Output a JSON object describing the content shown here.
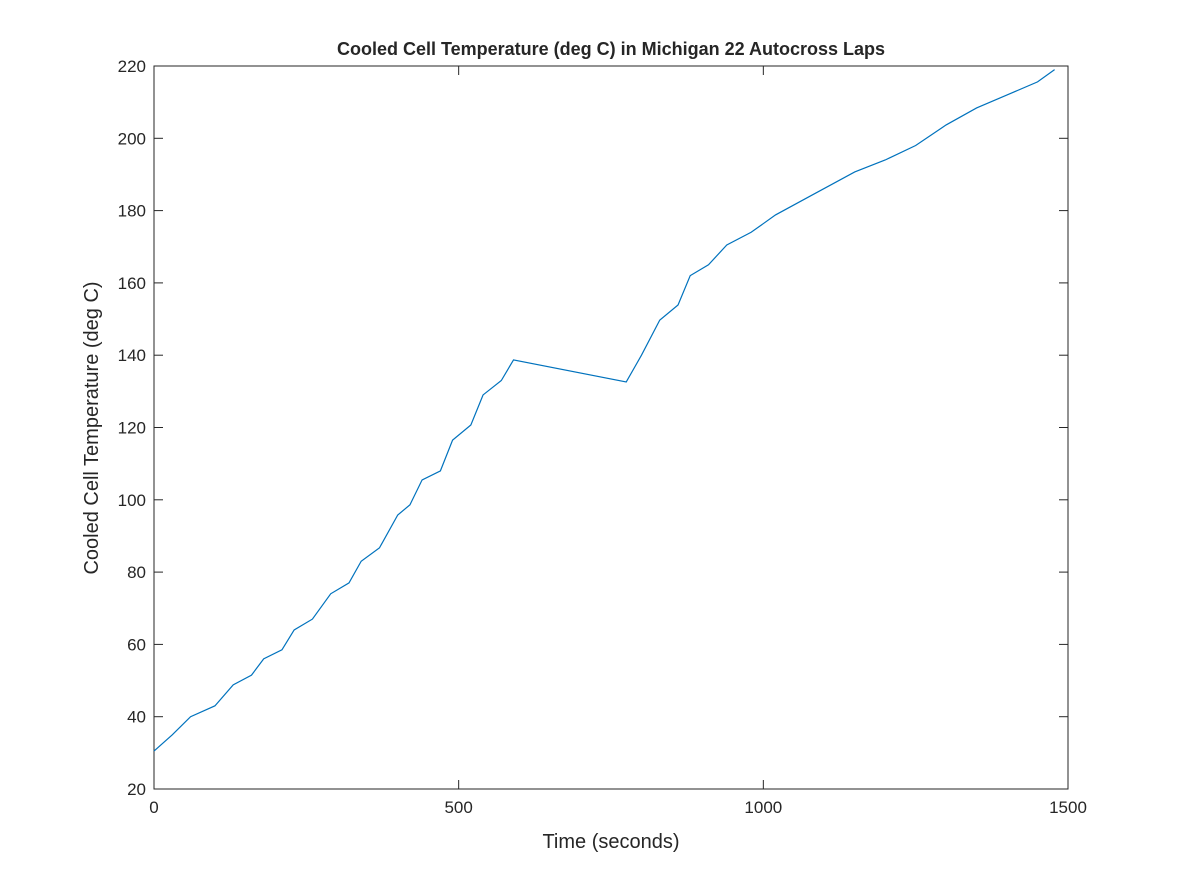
{
  "chart_data": {
    "type": "line",
    "title": "Cooled Cell Temperature (deg C) in Michigan 22 Autocross Laps",
    "x_label": "Time (seconds)",
    "y_label": "Cooled Cell Temperature (deg C)",
    "x": [
      0,
      30,
      60,
      100,
      130,
      160,
      180,
      210,
      230,
      260,
      290,
      320,
      340,
      370,
      400,
      420,
      440,
      470,
      490,
      520,
      540,
      570,
      590,
      775,
      800,
      830,
      860,
      880,
      910,
      940,
      980,
      1020,
      1080,
      1150,
      1200,
      1250,
      1300,
      1350,
      1400,
      1450,
      1478
    ],
    "series": [
      {
        "name": "Cooled Cell Temperature",
        "color": "#0072bd",
        "values": [
          30.5,
          35,
          40,
          43,
          48.8,
          51.5,
          56,
          58.5,
          64,
          67,
          74,
          77,
          83,
          86.7,
          95.8,
          98.6,
          105.5,
          108,
          116.5,
          120.7,
          129,
          133,
          138.7,
          132.6,
          140,
          149.7,
          153.9,
          162,
          165,
          170.5,
          174,
          178.8,
          184.3,
          190.7,
          194,
          198,
          203.7,
          208.4,
          212,
          215.6,
          219
        ]
      }
    ],
    "xlim": [
      0,
      1500
    ],
    "xticks": [
      0,
      500,
      1000,
      1500
    ],
    "ylim": [
      20,
      220
    ],
    "yticks": [
      20,
      40,
      60,
      80,
      100,
      120,
      140,
      160,
      180,
      200,
      220
    ]
  }
}
